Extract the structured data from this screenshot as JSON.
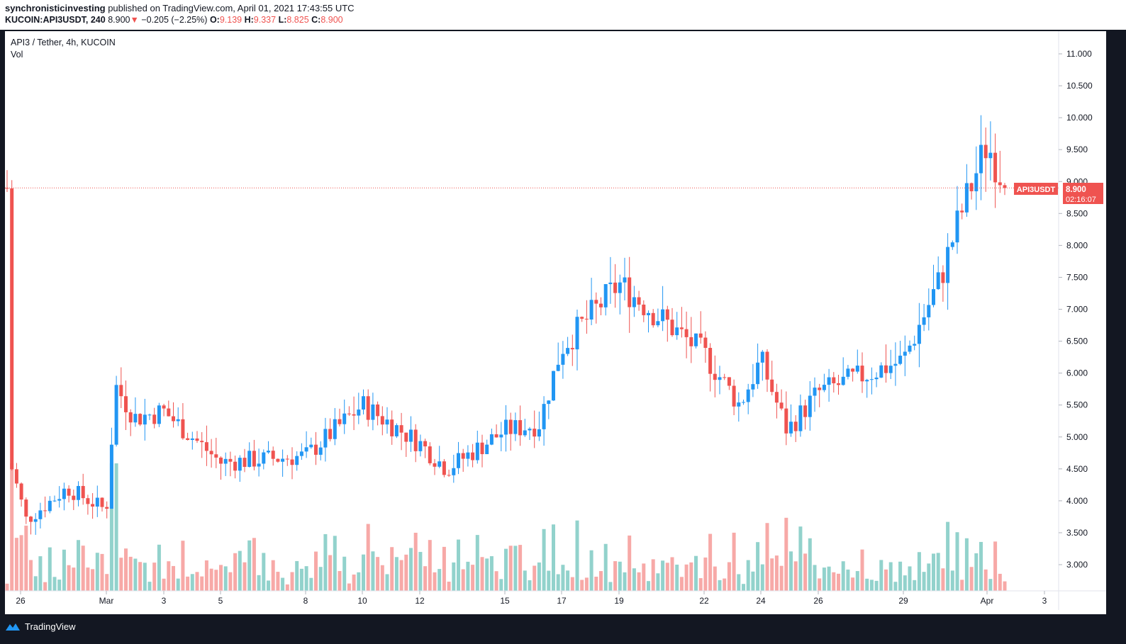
{
  "header": {
    "author": "synchronisticinvesting",
    "published": " published on TradingView.com, April 01, 2021 17:43:55 UTC",
    "symbol": "KUCOIN:API3USDT, 240",
    "last": "8.900",
    "arrow": "▼",
    "change": "−0.205 (−2.25%)",
    "o_label": "O:",
    "o": "9.139",
    "h_label": "H:",
    "h": "9.337",
    "l_label": "L:",
    "l": "8.825",
    "c_label": "C:",
    "c": "8.900"
  },
  "legend": {
    "title": "API3 / Tether, 4h, KUCOIN",
    "volume": "Vol"
  },
  "price_tag": {
    "symbol": "API3USDT",
    "price": "8.900",
    "countdown": "02:16:07"
  },
  "footer": {
    "brand": "TradingView"
  },
  "colors": {
    "up": "#2196f3",
    "down": "#ef5350",
    "vol_up": "#26a69a",
    "vol_down": "#ef5350",
    "bg": "#131722"
  },
  "chart_data": {
    "type": "candlestick",
    "y_axis_ticks": [
      "3.000",
      "3.500",
      "4.000",
      "4.500",
      "5.000",
      "5.500",
      "6.000",
      "6.500",
      "7.000",
      "7.500",
      "8.000",
      "8.500",
      "9.000",
      "9.500",
      "10.000",
      "10.500",
      "11.000"
    ],
    "x_axis_ticks": [
      "26",
      "Mar",
      "3",
      "5",
      "8",
      "10",
      "12",
      "15",
      "17",
      "19",
      "22",
      "24",
      "26",
      "29",
      "Apr",
      "3"
    ],
    "ylim": [
      2.6,
      11.3
    ],
    "last_price": 8.9,
    "keypoints": [
      {
        "date": "26",
        "close": 4.7
      },
      {
        "date": "27",
        "close": 3.7
      },
      {
        "date": "28",
        "close": 4.2
      },
      {
        "date": "Mar",
        "close": 3.85
      },
      {
        "date": "Mar",
        "close": 5.8
      },
      {
        "date": "2",
        "close": 5.3
      },
      {
        "date": "3",
        "close": 5.4
      },
      {
        "date": "5",
        "close": 4.6
      },
      {
        "date": "8",
        "close": 4.7
      },
      {
        "date": "10",
        "close": 5.5
      },
      {
        "date": "12",
        "close": 4.9
      },
      {
        "date": "13",
        "close": 4.5
      },
      {
        "date": "15",
        "close": 5.1
      },
      {
        "date": "16",
        "close": 5.2
      },
      {
        "date": "17",
        "close": 6.4
      },
      {
        "date": "19",
        "close": 7.4
      },
      {
        "date": "22",
        "close": 6.3
      },
      {
        "date": "23",
        "close": 5.5
      },
      {
        "date": "24",
        "close": 6.2
      },
      {
        "date": "25",
        "close": 5.1
      },
      {
        "date": "26",
        "close": 5.7
      },
      {
        "date": "29",
        "close": 6.2
      },
      {
        "date": "30",
        "close": 7.5
      },
      {
        "date": "31",
        "close": 8.4
      },
      {
        "date": "Apr",
        "close": 9.6
      },
      {
        "date": "Apr",
        "close": 8.9
      }
    ]
  }
}
